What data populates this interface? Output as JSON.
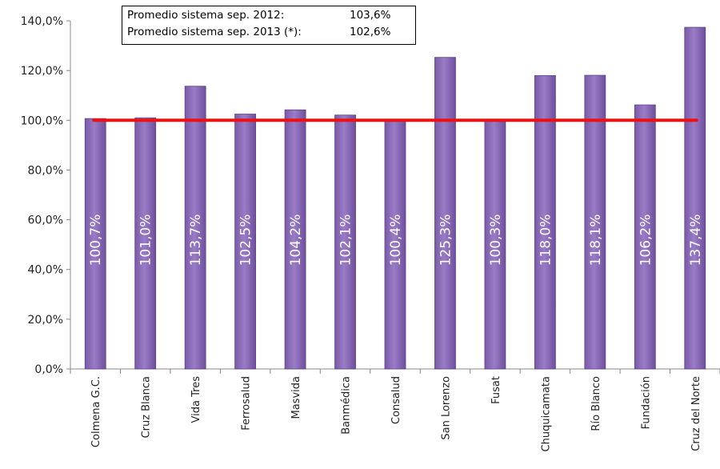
{
  "chart_data": {
    "type": "bar",
    "categories": [
      "Colmena G.C.",
      "Cruz Blanca",
      "Vida Tres",
      "Ferrosalud",
      "Masvida",
      "Banmédica",
      "Consalud",
      "San Lorenzo",
      "Fusat",
      "Chuquicamata",
      "Río Blanco",
      "Fundación",
      "Cruz del Norte"
    ],
    "values": [
      100.7,
      101.0,
      113.7,
      102.5,
      104.2,
      102.1,
      100.4,
      125.3,
      100.3,
      118.0,
      118.1,
      106.2,
      137.4
    ],
    "data_labels": [
      "100,7%",
      "101,0%",
      "113,7%",
      "102,5%",
      "104,2%",
      "102,1%",
      "100,4%",
      "125,3%",
      "100,3%",
      "118,0%",
      "118,1%",
      "106,2%",
      "137,4%"
    ],
    "y_ticks": [
      "0,0%",
      "20,0%",
      "40,0%",
      "60,0%",
      "80,0%",
      "100,0%",
      "120,0%",
      "140,0%"
    ],
    "ylim": [
      0,
      140
    ],
    "reference_line": 100,
    "colors": {
      "bar": "#8868b4",
      "bar_edge": "#5e4488",
      "reference_line": "#ee1111",
      "axis": "#888888"
    },
    "annotation": {
      "rows": [
        {
          "label": "Promedio sistema sep. 2012:",
          "value": "103,6%"
        },
        {
          "label": "Promedio sistema sep. 2013 (*):",
          "value": "102,6%"
        }
      ]
    },
    "title": "",
    "xlabel": "",
    "ylabel": "",
    "grid": false
  }
}
